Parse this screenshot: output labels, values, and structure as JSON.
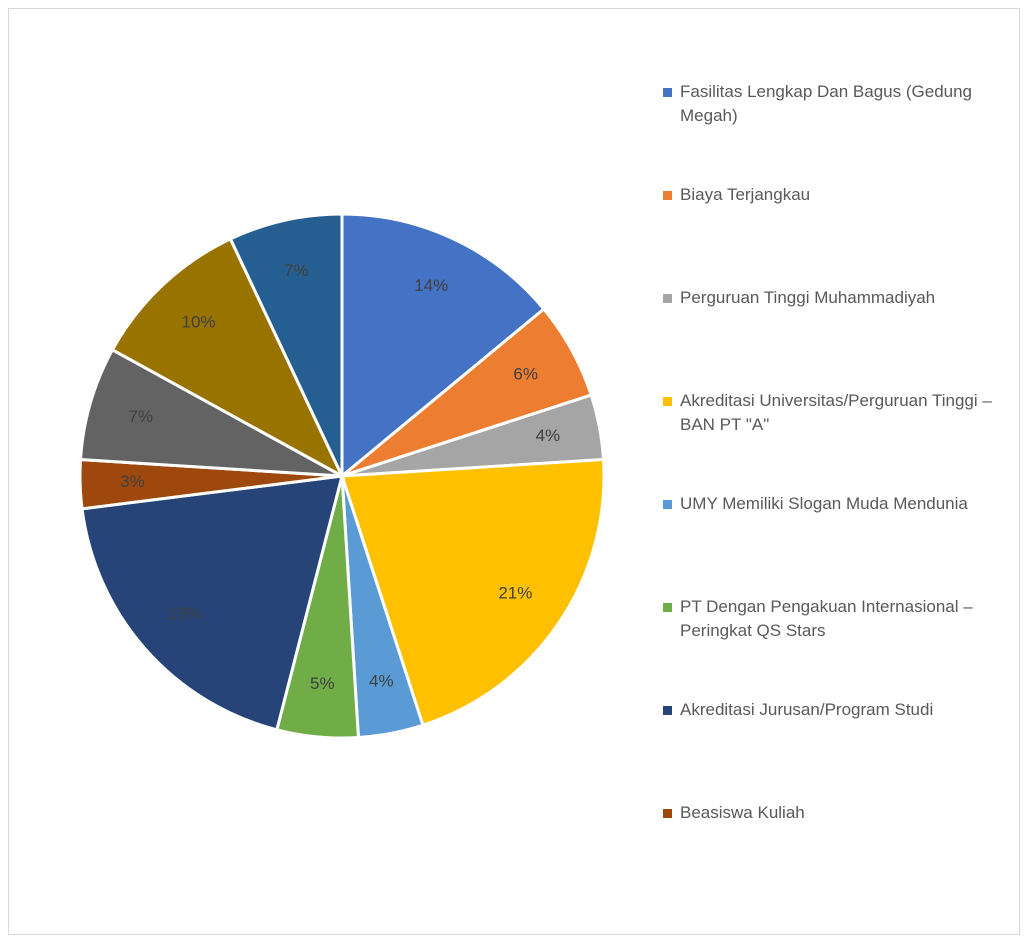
{
  "chart_data": {
    "type": "pie",
    "categories": [
      "Fasilitas Lengkap Dan Bagus (Gedung Megah)",
      "Biaya Terjangkau",
      "Perguruan Tinggi Muhammadiyah",
      "Akreditasi Universitas/Perguruan Tinggi – BAN PT \"A\"",
      "UMY Memiliki Slogan Muda Mendunia",
      "PT Dengan Pengakuan Internasional – Peringkat QS Stars",
      "Akreditasi Jurusan/Program Studi",
      "Beasiswa Kuliah",
      null,
      null,
      null
    ],
    "values": [
      14,
      6,
      4,
      21,
      4,
      5,
      19,
      3,
      7,
      10,
      7
    ],
    "value_labels": [
      "14%",
      "6%",
      "4%",
      "21%",
      "4%",
      "5%",
      "19%",
      "3%",
      "7%",
      "10%",
      "7%"
    ],
    "colors": [
      "#4472c4",
      "#ed7d31",
      "#a5a5a5",
      "#ffc000",
      "#5b9bd5",
      "#70ad47",
      "#264478",
      "#9e480e",
      "#636363",
      "#997300",
      "#255e91"
    ],
    "legend": "right"
  }
}
